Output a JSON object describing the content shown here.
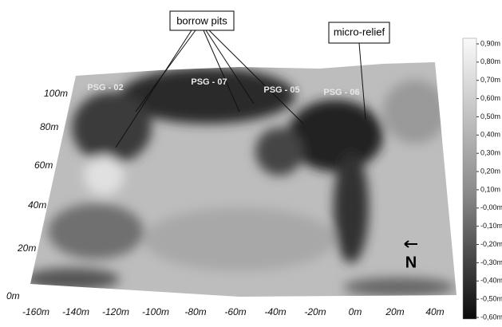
{
  "callouts": {
    "borrow_pits": "borrow pits",
    "micro_relief": "micro-relief"
  },
  "sites": [
    "PSG - 02",
    "PSG - 07",
    "PSG - 05",
    "PSG - 06"
  ],
  "y_axis": {
    "labels": [
      "100m",
      "80m",
      "60m",
      "40m",
      "20m",
      "0m"
    ]
  },
  "x_axis": {
    "labels": [
      "-160m",
      "-140m",
      "-120m",
      "-100m",
      "-80m",
      "-60m",
      "-40m",
      "-20m",
      "0m",
      "20m",
      "40m"
    ]
  },
  "colorbar": {
    "labels": [
      "0,90m",
      "0,80m",
      "0,70m",
      "0,60m",
      "0,50m",
      "0,40m",
      "0,30m",
      "0,20m",
      "0,10m",
      "-0,00m",
      "-0,10m",
      "-0,20m",
      "-0,30m",
      "-0,40m",
      "-0,50m",
      "-0,60m"
    ]
  },
  "north": "N"
}
